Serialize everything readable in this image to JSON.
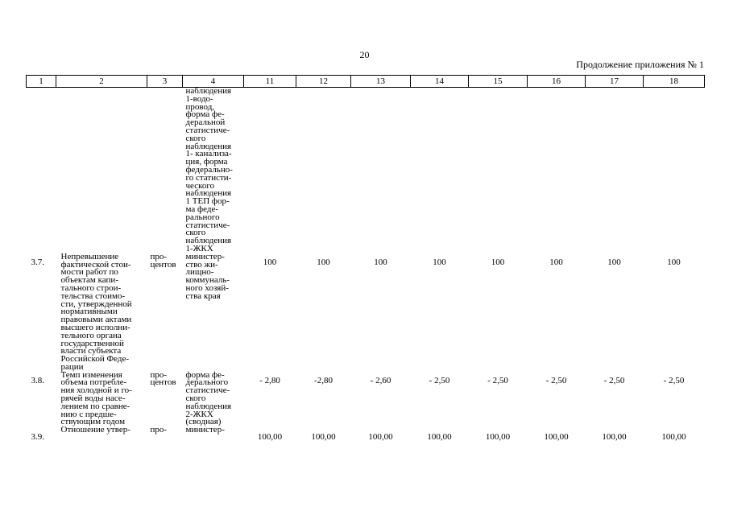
{
  "page": {
    "number": "20",
    "continuation": "Продолжение приложения № 1"
  },
  "table": {
    "headers": [
      "1",
      "2",
      "3",
      "4",
      "11",
      "12",
      "13",
      "14",
      "15",
      "16",
      "17",
      "18"
    ],
    "continuation_source": "наблюдения\n1-водо-\nпровод,\nформа фе-\nдеральной\nстатистиче-\nского\nнаблюдения\n1- канализа-\nция, форма\nфедерально-\nго статисти-\nческого\nнаблюдения\n1 ТЕП фор-\nма феде-\nрального\nстатистиче-\nского\nнаблюдения\n1-ЖКХ",
    "rows": [
      {
        "num": "3.7.",
        "name": "Непревышение\nфактической стои-\nмости работ по\nобъектам капи-\nтального строи-\nтельства стоимо-\nсти, утвержденной\nнормативными\nправовыми актами\nвысшего исполни-\nтельного органа\nгосударственной\nвласти субъекта\nРоссийской Феде-\nрации",
        "unit": "про-\nцентов",
        "source": "министер-\nство жи-\nлищно-\nкоммуналь-\nного хозяй-\nства края",
        "values": [
          "100",
          "100",
          "100",
          "100",
          "100",
          "100",
          "100",
          "100"
        ]
      },
      {
        "num": "3.8.",
        "name": "Темп изменения\nобъема потребле-\nния холодной и го-\nрячей воды насе-\nлением по сравне-\nнию с предше-\nствующим годом",
        "unit": "про-\nцентов",
        "source": "форма фе-\nдерального\nстатистиче-\nского\nнаблюдения\n2-ЖКХ\n(сводная)",
        "values": [
          "- 2,80",
          "-2,80",
          "- 2,60",
          "- 2,50",
          "- 2,50",
          "- 2,50",
          "- 2,50",
          "- 2,50"
        ]
      },
      {
        "num": "3.9.",
        "name": "Отношение утвер-",
        "unit": "про-",
        "source": "министер-",
        "values": [
          "100,00",
          "100,00",
          "100,00",
          "100,00",
          "100,00",
          "100,00",
          "100,00",
          "100,00"
        ]
      }
    ]
  }
}
